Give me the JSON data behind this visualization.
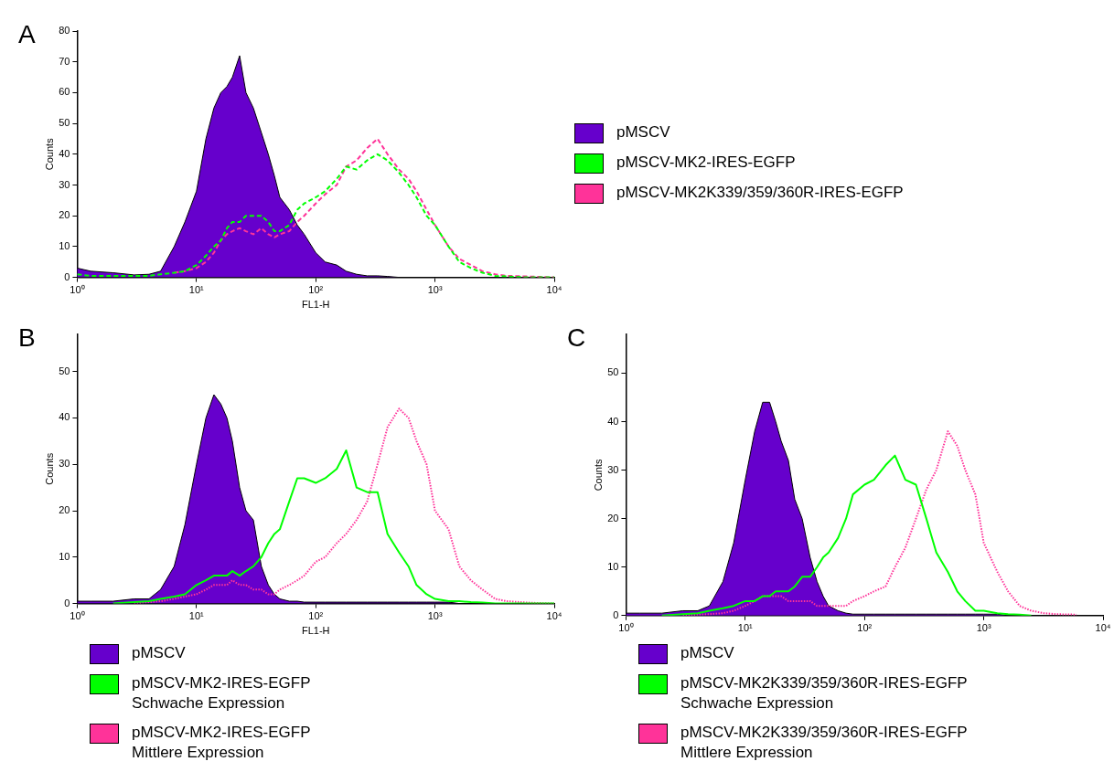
{
  "chart_data": [
    {
      "type": "line",
      "title": "A",
      "xlabel": "FL1-H",
      "ylabel": "Counts",
      "log": "x",
      "legend": "right",
      "xlim": [
        1,
        10000
      ],
      "ylim": [
        0,
        80
      ],
      "xticks": [
        {
          "value": 1,
          "label": "10⁰"
        },
        {
          "value": 10,
          "label": "10¹"
        },
        {
          "value": 100,
          "label": "10²"
        },
        {
          "value": 1000,
          "label": "10³"
        },
        {
          "value": 10000,
          "label": "10⁴"
        }
      ],
      "yticks": [
        0,
        10,
        20,
        30,
        40,
        50,
        60,
        70,
        80
      ],
      "x": [
        1,
        1.3,
        2,
        3,
        4,
        5,
        6.5,
        8,
        10,
        12,
        14,
        16,
        18,
        20,
        23,
        26,
        30,
        35,
        40,
        45,
        50,
        60,
        70,
        80,
        100,
        120,
        150,
        180,
        220,
        270,
        330,
        400,
        500,
        600,
        700,
        850,
        1000,
        1300,
        1600,
        2000,
        2500,
        3200,
        4000,
        6000,
        10000
      ],
      "series": [
        {
          "name": "pMSCV",
          "type": "area",
          "color": "#6600cc",
          "values": [
            3,
            2,
            1.5,
            0.8,
            1,
            2,
            10,
            18,
            28,
            45,
            55,
            60,
            62,
            65,
            72,
            60,
            55,
            47,
            40,
            33,
            26,
            22,
            17,
            14,
            8,
            5,
            4,
            2,
            1,
            0.5,
            0.5,
            0.3,
            0,
            0,
            0,
            0,
            0,
            0,
            0,
            0,
            0,
            0,
            0,
            0,
            0
          ]
        },
        {
          "name": "pMSCV-MK2-IRES-EGFP",
          "color": "#00ff00",
          "line_style": "dashed",
          "values": [
            1,
            0.5,
            0.5,
            0.5,
            0.5,
            1,
            1.5,
            2,
            4,
            7,
            10,
            12,
            16,
            18,
            18,
            20,
            20,
            20,
            18,
            15,
            15,
            17,
            22,
            24,
            26,
            28,
            32,
            36,
            35,
            38,
            40,
            38,
            34,
            30,
            26,
            20,
            17,
            10,
            5,
            3,
            1.5,
            0.5,
            0.3,
            0,
            0
          ]
        },
        {
          "name": "pMSCV-MK2K339/359/360R-IRES-EGFP",
          "color": "#ff3399",
          "line_style": "dashed",
          "values": [
            null,
            null,
            null,
            null,
            null,
            null,
            1.5,
            2,
            3,
            5,
            8,
            12,
            14,
            15,
            16,
            15,
            14,
            16,
            14,
            13,
            14,
            15,
            18,
            20,
            24,
            27,
            30,
            36,
            38,
            42,
            45,
            40,
            35,
            32,
            28,
            22,
            17,
            10,
            6,
            4,
            2,
            1,
            0.5,
            0.3,
            0
          ]
        }
      ]
    },
    {
      "type": "line",
      "title": "B",
      "xlabel": "FL1-H",
      "ylabel": "Counts",
      "log": "x",
      "legend": "bottom",
      "xlim": [
        1,
        10000
      ],
      "ylim": [
        0,
        58
      ],
      "xticks": [
        {
          "value": 1,
          "label": "10⁰"
        },
        {
          "value": 10,
          "label": "10¹"
        },
        {
          "value": 100,
          "label": "10²"
        },
        {
          "value": 1000,
          "label": "10³"
        },
        {
          "value": 10000,
          "label": "10⁴"
        }
      ],
      "yticks": [
        0,
        10,
        20,
        30,
        40,
        50
      ],
      "x": [
        1,
        1.3,
        2,
        3,
        4,
        5,
        6.5,
        8,
        10,
        12,
        14,
        16,
        18,
        20,
        23,
        26,
        30,
        35,
        40,
        45,
        50,
        60,
        70,
        80,
        100,
        120,
        150,
        180,
        220,
        270,
        330,
        400,
        500,
        600,
        700,
        850,
        1000,
        1300,
        1600,
        2000,
        2500,
        3200,
        4000,
        6000,
        10000
      ],
      "series": [
        {
          "name": "pMSCV",
          "type": "area",
          "color": "#6600cc",
          "values": [
            0.5,
            0.5,
            0.5,
            1,
            1,
            3,
            8,
            17,
            30,
            40,
            45,
            43,
            40,
            35,
            25,
            20,
            18,
            8,
            4,
            2,
            1,
            0.5,
            0.5,
            0.3,
            0.3,
            0.3,
            0.3,
            0.3,
            0.3,
            0.3,
            0.3,
            0.3,
            0.3,
            0.3,
            0.3,
            0.3,
            0.3,
            0.3,
            0,
            0,
            0,
            0,
            0,
            0,
            0
          ]
        },
        {
          "name": "pMSCV-MK2-IRES-EGFP\nSchwache Expression",
          "color": "#00ff00",
          "line_style": "solid",
          "values": [
            null,
            null,
            0,
            0.3,
            0.5,
            1,
            1.5,
            2,
            4,
            5,
            6,
            6,
            6,
            7,
            6,
            7,
            8,
            10,
            13,
            15,
            16,
            22,
            27,
            27,
            26,
            27,
            29,
            33,
            25,
            24,
            24,
            15,
            11,
            8,
            4,
            2,
            1,
            0.5,
            0.5,
            0.3,
            0.2,
            0,
            0,
            0,
            0
          ]
        },
        {
          "name": "pMSCV-MK2-IRES-EGFP\nMittlere Expression",
          "color": "#ff3399",
          "line_style": "dotted",
          "values": [
            null,
            null,
            null,
            0,
            0.3,
            0.5,
            1,
            1.5,
            2,
            3,
            4,
            4,
            4,
            5,
            4,
            4,
            3,
            3,
            2,
            2,
            3,
            4,
            5,
            6,
            9,
            10,
            13,
            15,
            18,
            22,
            30,
            38,
            42,
            40,
            35,
            30,
            20,
            16,
            8,
            5,
            3,
            1,
            0.5,
            0.2,
            0
          ]
        }
      ]
    },
    {
      "type": "line",
      "title": "C",
      "ylabel": "Counts",
      "log": "x",
      "legend": "bottom",
      "xlim": [
        1,
        10000
      ],
      "ylim": [
        0,
        58
      ],
      "xticks": [
        {
          "value": 1,
          "label": "10⁰"
        },
        {
          "value": 10,
          "label": "10¹"
        },
        {
          "value": 100,
          "label": "10²"
        },
        {
          "value": 1000,
          "label": "10³"
        },
        {
          "value": 10000,
          "label": "10⁴"
        }
      ],
      "yticks": [
        0,
        10,
        20,
        30,
        40,
        50
      ],
      "x": [
        1,
        1.3,
        2,
        3,
        4,
        5,
        6.5,
        8,
        10,
        12,
        14,
        16,
        18,
        20,
        23,
        26,
        30,
        35,
        40,
        45,
        50,
        60,
        70,
        80,
        100,
        120,
        150,
        180,
        220,
        270,
        330,
        400,
        500,
        600,
        700,
        850,
        1000,
        1300,
        1600,
        2000,
        2500,
        3200,
        4000,
        6000,
        10000
      ],
      "series": [
        {
          "name": "pMSCV",
          "type": "area",
          "color": "#6600cc",
          "values": [
            0.5,
            0.5,
            0.5,
            1,
            1,
            2,
            7,
            15,
            28,
            38,
            44,
            44,
            40,
            36,
            32,
            24,
            20,
            12,
            7,
            4,
            2,
            1,
            0.5,
            0.3,
            0.3,
            0.3,
            0.3,
            0.3,
            0.3,
            0.3,
            0.3,
            0.3,
            0.3,
            0.3,
            0.3,
            0.3,
            0.3,
            0.3,
            0,
            0,
            0,
            0,
            0,
            0,
            0
          ]
        },
        {
          "name": "pMSCV-MK2K339/359/360R-IRES-EGFP\nSchwache Expression",
          "color": "#00ff00",
          "line_style": "solid",
          "values": [
            null,
            null,
            0,
            0.3,
            0.5,
            1,
            1.5,
            2,
            3,
            3,
            4,
            4,
            5,
            5,
            5,
            6,
            8,
            8,
            10,
            12,
            13,
            16,
            20,
            25,
            27,
            28,
            31,
            33,
            28,
            27,
            20,
            13,
            9,
            5,
            3,
            1,
            1,
            0.5,
            0.3,
            0.2,
            0,
            null,
            null,
            null,
            null
          ]
        },
        {
          "name": "pMSCV-MK2K339/359/360R-IRES-EGFP\nMittlere Expression",
          "color": "#ff3399",
          "line_style": "dotted",
          "values": [
            null,
            null,
            null,
            0,
            0.2,
            0.3,
            0.5,
            1,
            2,
            3,
            4,
            4,
            4,
            4,
            3,
            3,
            3,
            3,
            2,
            2,
            2,
            2,
            2,
            3,
            4,
            5,
            6,
            10,
            14,
            20,
            26,
            30,
            38,
            35,
            30,
            25,
            15,
            9,
            5,
            2,
            1,
            0.5,
            0.3,
            0.2,
            null
          ]
        }
      ]
    }
  ]
}
